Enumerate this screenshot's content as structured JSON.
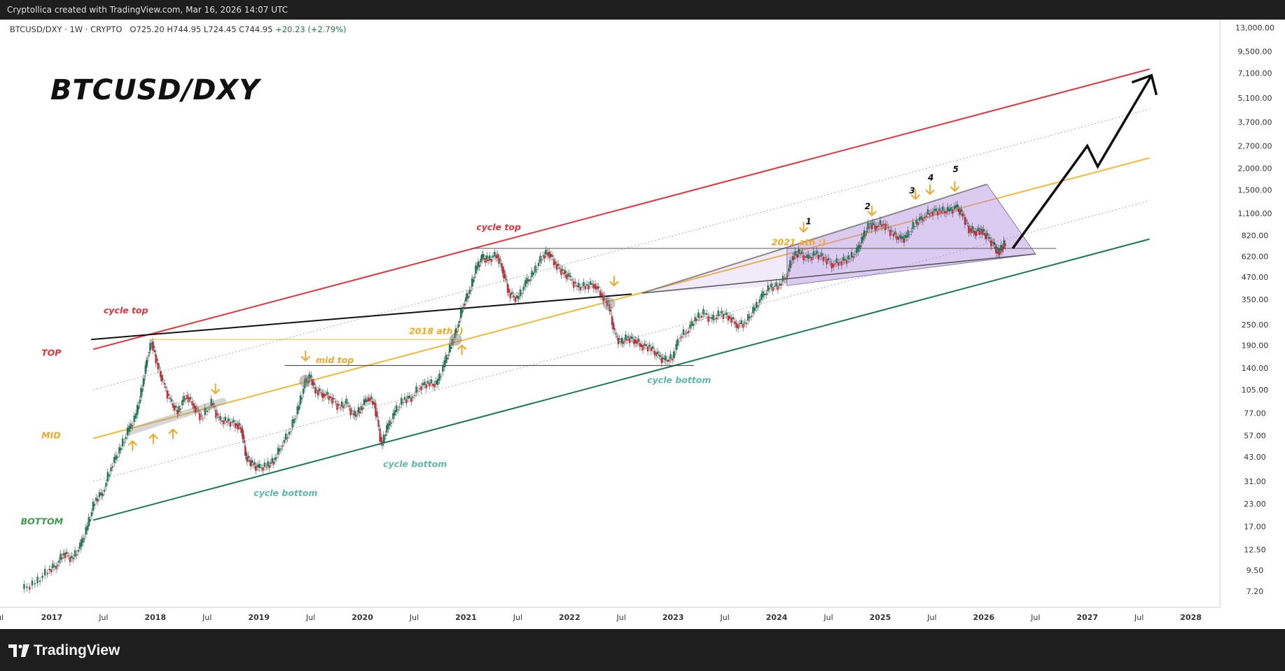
{
  "header": {
    "watermark_text": "Cryptollica created with TradingView.com, Mar 16, 2026 14:07 UTC"
  },
  "symbol_info": {
    "symbol": "BTCUSD/DXY · 1W · CRYPTO",
    "ohlc": "O725.20 H744.95 L724.45 C744.95",
    "change": "+20.23 (+2.79%)"
  },
  "chart_title": "BTCUSD/DXY",
  "footer": {
    "brand": "TradingView"
  },
  "colors": {
    "red_line": "#e8323c",
    "mid_line": "#f5b731",
    "bottom_line": "#177a55",
    "arrow_orange": "#f5a623",
    "cycle_top_text": "#e8323c",
    "cycle_bottom_text": "#5cb8aa",
    "wedge_fill": "#b18be0",
    "candle_up": "#1c7a55",
    "candle_down": "#c62e37"
  },
  "chart_data": {
    "type": "line",
    "title": "BTCUSD/DXY",
    "scale": "log",
    "xlabel": "",
    "ylabel": "",
    "y_ticks": [
      7.2,
      9.5,
      12.5,
      17,
      23,
      31,
      43,
      57,
      77,
      105,
      140,
      190,
      250,
      350,
      470,
      620,
      820,
      1100,
      1500,
      2000,
      2700,
      3700,
      5100,
      7100,
      9500,
      13000
    ],
    "y_tick_labels": [
      "7.20",
      "9.50",
      "12.50",
      "17.00",
      "23.00",
      "31.00",
      "43.00",
      "57.00",
      "77.00",
      "105.00",
      "140.00",
      "190.00",
      "250.00",
      "350.00",
      "470.00",
      "620.00",
      "820.00",
      "1,100.00",
      "1,500.00",
      "2,000.00",
      "2,700.00",
      "3,700.00",
      "5,100.00",
      "7,100.00",
      "9,500.00",
      "13,000.00"
    ],
    "x_ticks": [
      {
        "t": 2016.5,
        "label": "ul",
        "bold": false
      },
      {
        "t": 2017.0,
        "label": "2017",
        "bold": true
      },
      {
        "t": 2017.5,
        "label": "Jul",
        "bold": false
      },
      {
        "t": 2018.0,
        "label": "2018",
        "bold": true
      },
      {
        "t": 2018.5,
        "label": "Jul",
        "bold": false
      },
      {
        "t": 2019.0,
        "label": "2019",
        "bold": true
      },
      {
        "t": 2019.5,
        "label": "Jul",
        "bold": false
      },
      {
        "t": 2020.0,
        "label": "2020",
        "bold": true
      },
      {
        "t": 2020.5,
        "label": "Jul",
        "bold": false
      },
      {
        "t": 2021.0,
        "label": "2021",
        "bold": true
      },
      {
        "t": 2021.5,
        "label": "Jul",
        "bold": false
      },
      {
        "t": 2022.0,
        "label": "2022",
        "bold": true
      },
      {
        "t": 2022.5,
        "label": "Jul",
        "bold": false
      },
      {
        "t": 2023.0,
        "label": "2023",
        "bold": true
      },
      {
        "t": 2023.5,
        "label": "Jul",
        "bold": false
      },
      {
        "t": 2024.0,
        "label": "2024",
        "bold": true
      },
      {
        "t": 2024.5,
        "label": "Jul",
        "bold": false
      },
      {
        "t": 2025.0,
        "label": "2025",
        "bold": true
      },
      {
        "t": 2025.5,
        "label": "Jul",
        "bold": false
      },
      {
        "t": 2026.0,
        "label": "2026",
        "bold": true
      },
      {
        "t": 2026.5,
        "label": "Jul",
        "bold": false
      },
      {
        "t": 2027.0,
        "label": "2027",
        "bold": true
      },
      {
        "t": 2027.5,
        "label": "Jul",
        "bold": false
      },
      {
        "t": 2028.0,
        "label": "2028",
        "bold": true
      }
    ],
    "price_series": {
      "name": "BTCUSD/DXY",
      "points": [
        [
          2016.72,
          7.4
        ],
        [
          2016.85,
          8.0
        ],
        [
          2016.97,
          9.5
        ],
        [
          2017.05,
          10.2
        ],
        [
          2017.12,
          12.0
        ],
        [
          2017.2,
          11.0
        ],
        [
          2017.28,
          13.0
        ],
        [
          2017.35,
          17.0
        ],
        [
          2017.42,
          24.0
        ],
        [
          2017.5,
          27.0
        ],
        [
          2017.58,
          38.0
        ],
        [
          2017.66,
          47.0
        ],
        [
          2017.74,
          60.0
        ],
        [
          2017.82,
          75.0
        ],
        [
          2017.88,
          110.0
        ],
        [
          2017.93,
          165.0
        ],
        [
          2017.97,
          200.0
        ],
        [
          2018.02,
          150.0
        ],
        [
          2018.08,
          115.0
        ],
        [
          2018.15,
          90.0
        ],
        [
          2018.22,
          78.0
        ],
        [
          2018.3,
          98.0
        ],
        [
          2018.38,
          85.0
        ],
        [
          2018.45,
          72.0
        ],
        [
          2018.55,
          88.0
        ],
        [
          2018.62,
          70.0
        ],
        [
          2018.7,
          69.0
        ],
        [
          2018.78,
          67.0
        ],
        [
          2018.84,
          62.0
        ],
        [
          2018.88,
          43.0
        ],
        [
          2018.94,
          39.0
        ],
        [
          2019.0,
          37.0
        ],
        [
          2019.08,
          38.0
        ],
        [
          2019.15,
          41.0
        ],
        [
          2019.22,
          50.0
        ],
        [
          2019.3,
          60.0
        ],
        [
          2019.38,
          80.0
        ],
        [
          2019.45,
          115.0
        ],
        [
          2019.5,
          125.0
        ],
        [
          2019.55,
          105.0
        ],
        [
          2019.62,
          100.0
        ],
        [
          2019.7,
          95.0
        ],
        [
          2019.78,
          83.0
        ],
        [
          2019.85,
          88.0
        ],
        [
          2019.92,
          74.0
        ],
        [
          2019.98,
          80.0
        ],
        [
          2020.05,
          95.0
        ],
        [
          2020.12,
          88.0
        ],
        [
          2020.19,
          50.0
        ],
        [
          2020.24,
          62.0
        ],
        [
          2020.32,
          78.0
        ],
        [
          2020.4,
          92.0
        ],
        [
          2020.48,
          95.0
        ],
        [
          2020.56,
          110.0
        ],
        [
          2020.64,
          115.0
        ],
        [
          2020.72,
          112.0
        ],
        [
          2020.8,
          150.0
        ],
        [
          2020.86,
          190.0
        ],
        [
          2020.92,
          240.0
        ],
        [
          2020.98,
          330.0
        ],
        [
          2021.04,
          390.0
        ],
        [
          2021.1,
          520.0
        ],
        [
          2021.16,
          610.0
        ],
        [
          2021.22,
          590.0
        ],
        [
          2021.3,
          640.0
        ],
        [
          2021.36,
          520.0
        ],
        [
          2021.42,
          380.0
        ],
        [
          2021.5,
          350.0
        ],
        [
          2021.58,
          430.0
        ],
        [
          2021.66,
          500.0
        ],
        [
          2021.74,
          620.0
        ],
        [
          2021.8,
          660.0
        ],
        [
          2021.87,
          560.0
        ],
        [
          2021.94,
          500.0
        ],
        [
          2022.0,
          470.0
        ],
        [
          2022.08,
          410.0
        ],
        [
          2022.16,
          420.0
        ],
        [
          2022.24,
          430.0
        ],
        [
          2022.32,
          370.0
        ],
        [
          2022.38,
          330.0
        ],
        [
          2022.44,
          220.0
        ],
        [
          2022.5,
          195.0
        ],
        [
          2022.56,
          210.0
        ],
        [
          2022.63,
          205.0
        ],
        [
          2022.7,
          190.0
        ],
        [
          2022.78,
          185.0
        ],
        [
          2022.86,
          165.0
        ],
        [
          2022.92,
          155.0
        ],
        [
          2023.0,
          160.0
        ],
        [
          2023.06,
          210.0
        ],
        [
          2023.14,
          230.0
        ],
        [
          2023.22,
          270.0
        ],
        [
          2023.3,
          290.0
        ],
        [
          2023.38,
          265.0
        ],
        [
          2023.46,
          290.0
        ],
        [
          2023.54,
          280.0
        ],
        [
          2023.62,
          250.0
        ],
        [
          2023.7,
          255.0
        ],
        [
          2023.78,
          300.0
        ],
        [
          2023.86,
          360.0
        ],
        [
          2023.94,
          410.0
        ],
        [
          2024.02,
          420.0
        ],
        [
          2024.1,
          480.0
        ],
        [
          2024.16,
          620.0
        ],
        [
          2024.22,
          650.0
        ],
        [
          2024.3,
          600.0
        ],
        [
          2024.38,
          640.0
        ],
        [
          2024.46,
          610.0
        ],
        [
          2024.54,
          560.0
        ],
        [
          2024.62,
          580.0
        ],
        [
          2024.7,
          600.0
        ],
        [
          2024.78,
          660.0
        ],
        [
          2024.84,
          800.0
        ],
        [
          2024.9,
          950.0
        ],
        [
          2024.96,
          930.0
        ],
        [
          2025.04,
          960.0
        ],
        [
          2025.12,
          840.0
        ],
        [
          2025.2,
          780.0
        ],
        [
          2025.26,
          800.0
        ],
        [
          2025.34,
          960.0
        ],
        [
          2025.42,
          1050.0
        ],
        [
          2025.5,
          1130.0
        ],
        [
          2025.58,
          1140.0
        ],
        [
          2025.66,
          1130.0
        ],
        [
          2025.74,
          1190.0
        ],
        [
          2025.8,
          1080.0
        ],
        [
          2025.86,
          900.0
        ],
        [
          2025.92,
          860.0
        ],
        [
          2025.98,
          880.0
        ],
        [
          2026.04,
          800.0
        ],
        [
          2026.1,
          720.0
        ],
        [
          2026.14,
          650.0
        ],
        [
          2026.18,
          700.0
        ],
        [
          2026.21,
          744.95
        ]
      ]
    },
    "channel_lines": [
      {
        "id": "top",
        "color": "#e8323c",
        "from": [
          2017.4,
          180.0
        ],
        "to": [
          2027.6,
          7500.0
        ]
      },
      {
        "id": "upper_dotted",
        "color": "#aaaaaa",
        "from": [
          2017.4,
          105.0
        ],
        "to": [
          2027.6,
          4400.0
        ]
      },
      {
        "id": "mid",
        "color": "#f5b731",
        "from": [
          2017.4,
          55.0
        ],
        "to": [
          2027.6,
          2300.0
        ]
      },
      {
        "id": "lower_dotted",
        "color": "#aaaaaa",
        "from": [
          2017.4,
          31.0
        ],
        "to": [
          2027.6,
          1300.0
        ]
      },
      {
        "id": "bottom",
        "color": "#177a55",
        "from": [
          2017.4,
          18.5
        ],
        "to": [
          2027.6,
          780.0
        ]
      }
    ],
    "horizontal_lines": [
      {
        "label": "2018 ath",
        "y": 205.0,
        "from": 2017.95,
        "to": 2020.95,
        "color": "#f5b731"
      },
      {
        "label": "mid top",
        "y": 145.0,
        "from": 2019.25,
        "to": 2023.2,
        "color": "#333333"
      },
      {
        "label": "2021 ath",
        "y": 690.0,
        "from": 2021.05,
        "to": 2026.7,
        "color": "#555555"
      }
    ],
    "annotations": [
      {
        "text": "TOP",
        "t": 2016.9,
        "y": 165.0,
        "color": "#e8323c"
      },
      {
        "text": "MID",
        "t": 2016.9,
        "y": 55.0,
        "color": "#f5a623"
      },
      {
        "text": "BOTTOM",
        "t": 2016.7,
        "y": 17.5,
        "color": "#3a9a4a"
      },
      {
        "text": "cycle top",
        "t": 2017.5,
        "y": 290.0,
        "color": "#e8323c"
      },
      {
        "text": "cycle top",
        "t": 2021.1,
        "y": 880.0,
        "color": "#e8323c"
      },
      {
        "text": "cycle bottom",
        "t": 2018.95,
        "y": 25.5,
        "color": "#5cb8aa"
      },
      {
        "text": "cycle bottom",
        "t": 2020.2,
        "y": 37.5,
        "color": "#5cb8aa"
      },
      {
        "text": "cycle bottom",
        "t": 2022.75,
        "y": 115.0,
        "color": "#5cb8aa"
      },
      {
        "text": "2018 ath :)",
        "t": 2020.45,
        "y": 220.0,
        "color": "#f5a623"
      },
      {
        "text": "mid top",
        "t": 2019.55,
        "y": 150.0,
        "color": "#f5a623"
      },
      {
        "text": "2021 ath :)",
        "t": 2023.95,
        "y": 720.0,
        "color": "#f5a623"
      },
      {
        "text": "1",
        "t": 2024.28,
        "y": 950.0,
        "color": "#111111"
      },
      {
        "text": "2",
        "t": 2024.85,
        "y": 1160.0,
        "color": "#111111"
      },
      {
        "text": "3",
        "t": 2025.28,
        "y": 1430.0,
        "color": "#111111"
      },
      {
        "text": "4",
        "t": 2025.46,
        "y": 1700.0,
        "color": "#111111"
      },
      {
        "text": "5",
        "t": 2025.7,
        "y": 1900.0,
        "color": "#111111"
      }
    ]
  }
}
